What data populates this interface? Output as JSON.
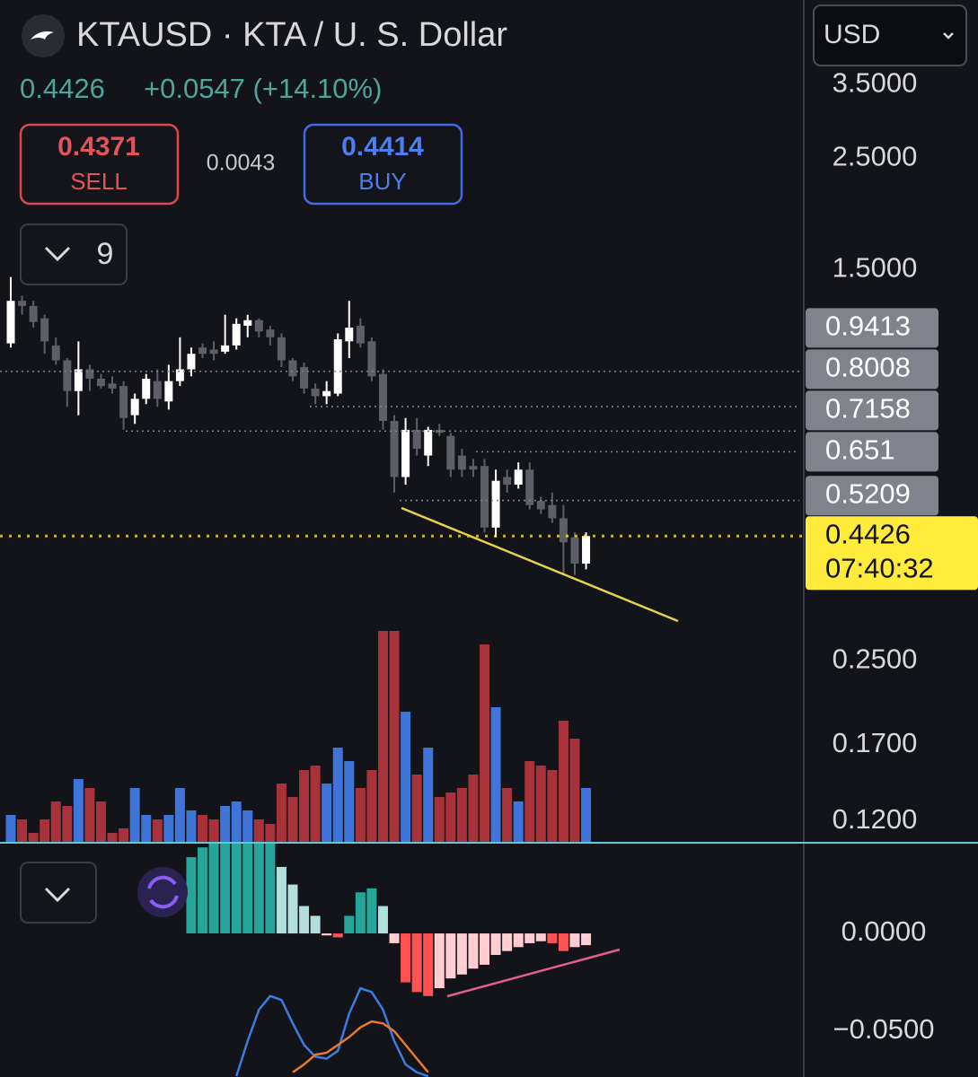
{
  "header": {
    "symbol": "KTAUSD · KTA / U. S. Dollar",
    "last": "0.4426",
    "change": "+0.0547 (+14.10%)",
    "sell_price": "0.4371",
    "sell_label": "SELL",
    "spread": "0.0043",
    "buy_price": "0.4414",
    "buy_label": "BUY",
    "indicator_count": "9",
    "currency": "USD"
  },
  "chart_data": [
    {
      "type": "candlestick",
      "log_scale": true,
      "ylim": [
        0.109,
        5.16
      ],
      "yticks": [
        {
          "value": 3.5,
          "label": "3.5000"
        },
        {
          "value": 2.5,
          "label": "2.5000"
        },
        {
          "value": 1.5,
          "label": "1.5000"
        },
        {
          "value": 0.25,
          "label": "0.2500"
        },
        {
          "value": 0.17,
          "label": "0.1700"
        },
        {
          "value": 0.12,
          "label": "0.1200"
        }
      ],
      "up_color": "#ffffff",
      "down_color": "#5d5f66",
      "open": [
        1.07,
        1.3,
        1.27,
        1.2,
        1.06,
        0.99,
        0.86,
        0.95,
        0.91,
        0.89,
        0.88,
        0.77,
        0.83,
        0.9,
        0.82,
        0.9,
        0.95,
        1.05,
        1.04,
        1.03,
        1.06,
        1.16,
        1.19,
        1.14,
        1.1,
        0.99,
        0.96,
        0.87,
        0.84,
        0.85,
        1.08,
        1.16,
        1.08,
        0.93,
        0.75,
        0.58,
        0.72,
        0.64,
        0.72,
        0.7,
        0.64,
        0.61,
        0.61,
        0.46,
        0.58,
        0.56,
        0.6,
        0.52,
        0.51,
        0.48,
        0.44,
        0.39
      ],
      "high": [
        1.45,
        1.33,
        1.3,
        1.22,
        1.1,
        1.0,
        1.08,
        0.97,
        0.93,
        0.92,
        0.9,
        0.85,
        0.93,
        0.95,
        0.97,
        1.1,
        1.05,
        1.07,
        1.08,
        1.22,
        1.2,
        1.22,
        1.2,
        1.16,
        1.12,
        1.0,
        0.98,
        0.89,
        0.9,
        1.12,
        1.3,
        1.2,
        1.1,
        0.95,
        0.77,
        0.76,
        0.76,
        0.73,
        0.74,
        0.71,
        0.66,
        0.63,
        0.63,
        0.6,
        0.6,
        0.62,
        0.62,
        0.53,
        0.54,
        0.51,
        0.45,
        0.45
      ],
      "low": [
        1.05,
        1.22,
        1.15,
        1.02,
        0.97,
        0.8,
        0.77,
        0.86,
        0.87,
        0.85,
        0.72,
        0.74,
        0.81,
        0.8,
        0.79,
        0.88,
        0.92,
        1.0,
        0.99,
        1.02,
        1.04,
        1.1,
        1.1,
        1.06,
        0.96,
        0.9,
        0.85,
        0.81,
        0.81,
        0.84,
        1.0,
        1.05,
        0.9,
        0.72,
        0.54,
        0.56,
        0.64,
        0.61,
        0.7,
        0.58,
        0.58,
        0.58,
        0.45,
        0.44,
        0.54,
        0.55,
        0.5,
        0.49,
        0.47,
        0.37,
        0.37,
        0.38
      ],
      "close": [
        1.3,
        1.27,
        1.18,
        1.08,
        0.99,
        0.86,
        0.95,
        0.91,
        0.88,
        0.87,
        0.76,
        0.83,
        0.91,
        0.83,
        0.9,
        0.95,
        1.02,
        1.02,
        1.02,
        1.06,
        1.17,
        1.19,
        1.13,
        1.1,
        0.99,
        0.92,
        0.87,
        0.84,
        0.86,
        1.09,
        1.15,
        1.07,
        0.92,
        0.75,
        0.58,
        0.72,
        0.66,
        0.72,
        0.71,
        0.6,
        0.6,
        0.6,
        0.46,
        0.57,
        0.56,
        0.6,
        0.51,
        0.5,
        0.48,
        0.43,
        0.39,
        0.4426
      ],
      "price_lines": [
        0.9413,
        0.8008,
        0.7158,
        0.651,
        0.5209
      ],
      "price_line_color": "#80838c",
      "last_price": {
        "value": 0.4426,
        "countdown": "07:40:32",
        "color": "#ffeb3b"
      }
    },
    {
      "type": "volume",
      "ylim": [
        0,
        300
      ],
      "up_color": "#3f74d9",
      "down_color": "#a8323a",
      "values": [
        30,
        25,
        10,
        25,
        45,
        40,
        70,
        60,
        45,
        10,
        15,
        60,
        30,
        25,
        30,
        60,
        35,
        30,
        25,
        40,
        45,
        35,
        25,
        20,
        65,
        50,
        80,
        85,
        65,
        105,
        90,
        60,
        80,
        235,
        235,
        145,
        75,
        105,
        50,
        55,
        60,
        75,
        220,
        150,
        60,
        45,
        90,
        85,
        80,
        135,
        115,
        60
      ]
    },
    {
      "type": "macd",
      "ylim": [
        -0.0734,
        0.0459
      ],
      "yticks": [
        {
          "value": 0,
          "label": "0.0000"
        },
        {
          "value": -0.05,
          "label": "−0.0500"
        }
      ],
      "colors": [
        "#26a69a",
        "#b2dfdb",
        "#ff5252",
        "#ffcdd2"
      ],
      "histogram": [
        null,
        null,
        null,
        null,
        null,
        null,
        null,
        null,
        null,
        null,
        null,
        null,
        null,
        null,
        null,
        null,
        0.039,
        0.044,
        0.046,
        0.046,
        0.046,
        0.046,
        0.046,
        0.046,
        0.034,
        0.025,
        0.014,
        0.009,
        -0.001,
        -0.002,
        0.009,
        0.021,
        0.023,
        0.014,
        -0.005,
        -0.025,
        -0.03,
        -0.032,
        -0.028,
        -0.023,
        -0.021,
        -0.018,
        -0.016,
        -0.011,
        -0.009,
        -0.007,
        -0.005,
        -0.004,
        -0.005,
        -0.009,
        -0.007,
        -0.006
      ],
      "series": [
        {
          "color": "#3d7be0",
          "values": [
            null,
            null,
            null,
            null,
            null,
            null,
            null,
            null,
            null,
            null,
            null,
            null,
            null,
            null,
            null,
            null,
            null,
            null,
            null,
            null,
            -0.073,
            -0.055,
            -0.039,
            -0.032,
            -0.034,
            -0.046,
            -0.057,
            -0.063,
            -0.064,
            -0.06,
            -0.041,
            -0.028,
            -0.03,
            -0.039,
            -0.055,
            -0.067,
            -0.071,
            -0.073,
            null,
            null,
            null,
            null,
            null,
            null,
            null,
            null,
            null,
            null,
            null,
            null,
            null,
            null
          ]
        },
        {
          "color": "#e9792e",
          "values": [
            null,
            null,
            null,
            null,
            null,
            null,
            null,
            null,
            null,
            null,
            null,
            null,
            null,
            null,
            null,
            null,
            null,
            null,
            null,
            null,
            null,
            null,
            null,
            null,
            null,
            -0.071,
            -0.067,
            -0.062,
            -0.061,
            -0.057,
            -0.053,
            -0.048,
            -0.045,
            -0.046,
            -0.05,
            -0.057,
            -0.064,
            -0.071,
            null,
            null,
            null,
            null,
            null,
            null,
            null,
            null,
            null,
            null,
            null,
            null,
            null,
            null
          ]
        }
      ]
    }
  ]
}
